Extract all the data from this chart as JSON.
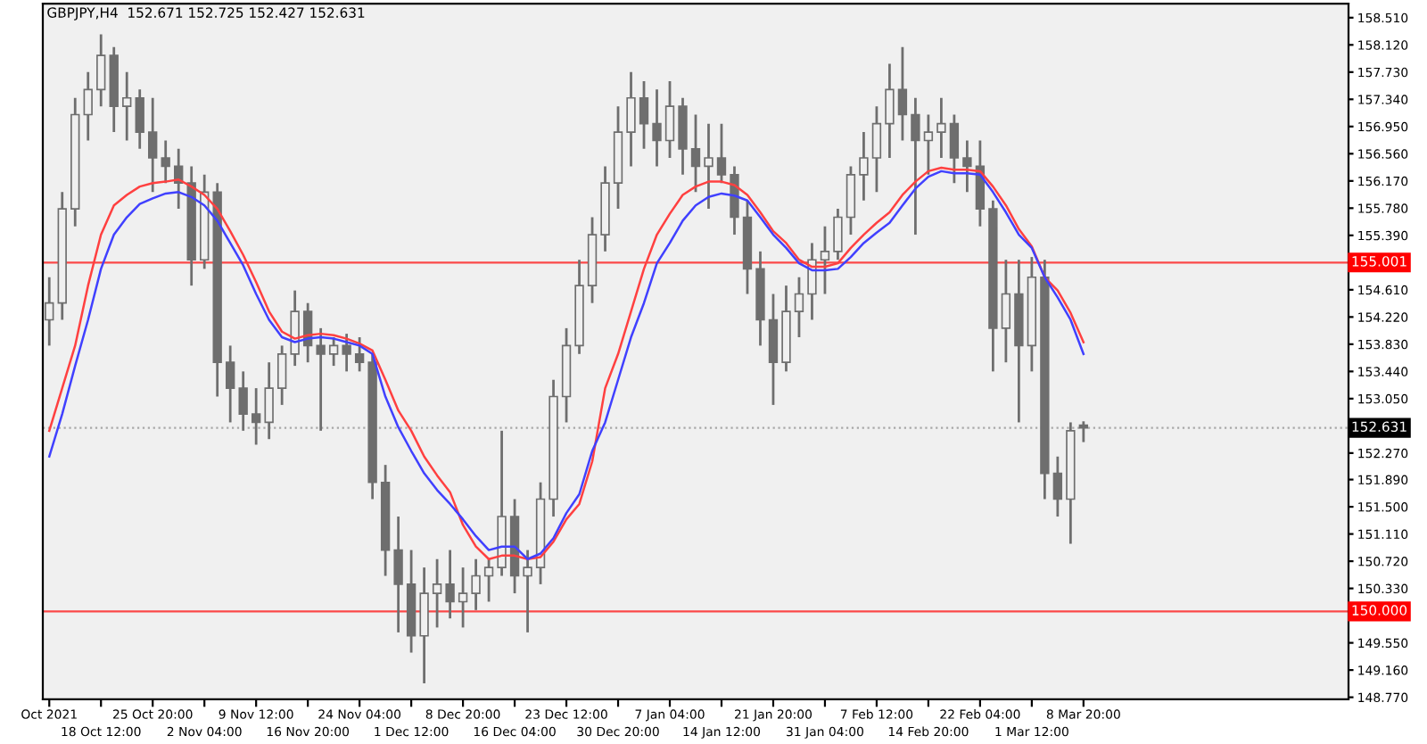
{
  "chart_data": {
    "type": "candlestick",
    "title": "GBPJPY,H4  152.671 152.725 152.427 152.631",
    "categories": [
      "Oct 2021",
      null,
      null,
      null,
      "18 Oct 12:00",
      null,
      null,
      null,
      "25 Oct 20:00",
      null,
      null,
      null,
      "2 Nov 04:00",
      null,
      null,
      null,
      "9 Nov 12:00",
      null,
      null,
      null,
      "16 Nov 20:00",
      null,
      null,
      null,
      "24 Nov 04:00",
      null,
      null,
      null,
      "1 Dec 12:00",
      null,
      null,
      null,
      "8 Dec 20:00",
      null,
      null,
      null,
      "16 Dec 04:00",
      null,
      null,
      null,
      "23 Dec 12:00",
      null,
      null,
      null,
      "30 Dec 20:00",
      null,
      null,
      null,
      "7 Jan 04:00",
      null,
      null,
      null,
      "14 Jan 12:00",
      null,
      null,
      null,
      "21 Jan 20:00",
      null,
      null,
      null,
      "31 Jan 04:00",
      null,
      null,
      null,
      "7 Feb 12:00",
      null,
      null,
      null,
      "14 Feb 20:00",
      null,
      null,
      null,
      "22 Feb 04:00",
      null,
      null,
      null,
      "1 Mar 12:00",
      null,
      null,
      null,
      "8 Mar 20:00",
      null,
      null,
      null,
      null,
      null,
      null,
      null,
      null,
      null,
      null,
      null,
      null,
      null,
      null,
      null,
      null,
      null,
      null,
      null,
      null
    ],
    "ohlc": [
      [
        154.18,
        154.79,
        153.81,
        154.42
      ],
      [
        154.42,
        156.01,
        154.18,
        155.77
      ],
      [
        155.77,
        157.36,
        155.52,
        157.12
      ],
      [
        157.12,
        157.73,
        156.75,
        157.48
      ],
      [
        157.48,
        158.27,
        157.24,
        157.97
      ],
      [
        157.97,
        158.09,
        156.87,
        157.24
      ],
      [
        157.24,
        157.73,
        156.75,
        157.36
      ],
      [
        157.36,
        157.48,
        156.63,
        156.87
      ],
      [
        156.87,
        157.36,
        156.01,
        156.5
      ],
      [
        156.5,
        156.75,
        156.14,
        156.38
      ],
      [
        156.38,
        156.63,
        155.77,
        156.14
      ],
      [
        156.14,
        156.38,
        154.67,
        155.04
      ],
      [
        155.04,
        156.26,
        154.91,
        156.01
      ],
      [
        156.01,
        156.14,
        153.08,
        153.57
      ],
      [
        153.57,
        153.81,
        152.71,
        153.2
      ],
      [
        153.2,
        153.44,
        152.59,
        152.83
      ],
      [
        152.83,
        153.2,
        152.39,
        152.71
      ],
      [
        152.71,
        153.57,
        152.47,
        153.2
      ],
      [
        153.2,
        153.81,
        152.96,
        153.69
      ],
      [
        153.69,
        154.6,
        153.52,
        154.3
      ],
      [
        154.3,
        154.42,
        153.57,
        153.81
      ],
      [
        153.81,
        154.06,
        152.59,
        153.69
      ],
      [
        153.69,
        153.93,
        153.52,
        153.81
      ],
      [
        153.81,
        153.98,
        153.44,
        153.69
      ],
      [
        153.69,
        153.93,
        153.44,
        153.57
      ],
      [
        153.57,
        153.69,
        151.61,
        151.85
      ],
      [
        151.85,
        152.1,
        150.51,
        150.88
      ],
      [
        150.88,
        151.36,
        149.7,
        150.39
      ],
      [
        150.39,
        150.88,
        149.41,
        149.65
      ],
      [
        149.65,
        150.63,
        148.97,
        150.26
      ],
      [
        150.26,
        150.75,
        149.77,
        150.39
      ],
      [
        150.39,
        150.88,
        149.9,
        150.14
      ],
      [
        150.14,
        150.63,
        149.77,
        150.26
      ],
      [
        150.26,
        150.75,
        150.02,
        150.51
      ],
      [
        150.51,
        150.75,
        150.14,
        150.63
      ],
      [
        150.63,
        152.59,
        150.51,
        151.36
      ],
      [
        151.36,
        151.61,
        150.26,
        150.51
      ],
      [
        150.51,
        150.88,
        149.7,
        150.63
      ],
      [
        150.63,
        151.85,
        150.39,
        151.61
      ],
      [
        151.61,
        153.32,
        151.36,
        153.08
      ],
      [
        153.08,
        154.06,
        152.71,
        153.81
      ],
      [
        153.81,
        155.04,
        153.69,
        154.67
      ],
      [
        154.67,
        155.65,
        154.42,
        155.4
      ],
      [
        155.4,
        156.38,
        155.16,
        156.14
      ],
      [
        156.14,
        157.24,
        155.77,
        156.87
      ],
      [
        156.87,
        157.73,
        156.38,
        157.36
      ],
      [
        157.36,
        157.6,
        156.63,
        156.99
      ],
      [
        156.99,
        157.48,
        156.38,
        156.75
      ],
      [
        156.75,
        157.6,
        156.5,
        157.24
      ],
      [
        157.24,
        157.36,
        156.26,
        156.63
      ],
      [
        156.63,
        157.12,
        156.01,
        156.38
      ],
      [
        156.38,
        156.99,
        155.77,
        156.5
      ],
      [
        156.5,
        156.99,
        156.14,
        156.26
      ],
      [
        156.26,
        156.38,
        155.4,
        155.65
      ],
      [
        155.65,
        155.89,
        154.55,
        154.91
      ],
      [
        154.91,
        155.16,
        153.81,
        154.18
      ],
      [
        154.18,
        154.55,
        152.96,
        153.57
      ],
      [
        153.57,
        154.67,
        153.44,
        154.3
      ],
      [
        154.3,
        154.79,
        153.93,
        154.55
      ],
      [
        154.55,
        155.28,
        154.18,
        155.04
      ],
      [
        155.04,
        155.52,
        154.55,
        155.16
      ],
      [
        155.16,
        155.77,
        155.04,
        155.65
      ],
      [
        155.65,
        156.38,
        155.4,
        156.26
      ],
      [
        156.26,
        156.87,
        155.89,
        156.5
      ],
      [
        156.5,
        157.24,
        156.01,
        156.99
      ],
      [
        156.99,
        157.85,
        156.5,
        157.48
      ],
      [
        157.48,
        158.09,
        156.75,
        157.12
      ],
      [
        157.12,
        157.36,
        155.4,
        156.75
      ],
      [
        156.75,
        157.12,
        156.26,
        156.87
      ],
      [
        156.87,
        157.36,
        156.5,
        156.99
      ],
      [
        156.99,
        157.12,
        156.14,
        156.5
      ],
      [
        156.5,
        156.75,
        156.01,
        156.38
      ],
      [
        156.38,
        156.75,
        155.52,
        155.77
      ],
      [
        155.77,
        155.89,
        153.44,
        154.06
      ],
      [
        154.06,
        155.04,
        153.57,
        154.55
      ],
      [
        154.55,
        155.04,
        152.71,
        153.81
      ],
      [
        153.81,
        155.08,
        153.44,
        154.79
      ],
      [
        154.79,
        155.04,
        151.61,
        151.98
      ],
      [
        151.98,
        152.22,
        151.36,
        151.61
      ],
      [
        151.61,
        152.71,
        150.97,
        152.59
      ],
      [
        152.671,
        152.725,
        152.427,
        152.631
      ],
      null,
      null,
      null,
      null,
      null,
      null,
      null,
      null,
      null,
      null,
      null,
      null,
      null,
      null,
      null,
      null,
      null,
      null,
      null,
      null
    ],
    "color": "#6e6e6e",
    "series": [
      {
        "type": "line",
        "color": "#ff4040",
        "values": [
          152.59,
          153.2,
          153.81,
          154.67,
          155.4,
          155.82,
          155.97,
          156.09,
          156.14,
          156.16,
          156.19,
          156.09,
          155.97,
          155.77,
          155.45,
          155.11,
          154.72,
          154.3,
          154.01,
          153.91,
          153.96,
          153.98,
          153.96,
          153.91,
          153.84,
          153.74,
          153.32,
          152.88,
          152.59,
          152.22,
          151.95,
          151.71,
          151.24,
          150.93,
          150.75,
          150.8,
          150.8,
          150.75,
          150.78,
          151.0,
          151.32,
          151.54,
          152.15,
          153.2,
          153.69,
          154.3,
          154.91,
          155.4,
          155.7,
          155.97,
          156.09,
          156.16,
          156.16,
          156.11,
          155.97,
          155.72,
          155.45,
          155.28,
          155.04,
          154.94,
          154.94,
          154.99,
          155.21,
          155.4,
          155.57,
          155.72,
          155.97,
          156.16,
          156.31,
          156.36,
          156.33,
          156.33,
          156.31,
          156.09,
          155.82,
          155.48,
          155.23,
          154.79,
          154.6,
          154.28,
          153.86,
          null,
          null,
          null,
          null,
          null,
          null,
          null,
          null,
          null,
          null,
          null,
          null,
          null,
          null,
          null,
          null,
          null,
          null,
          null,
          null
        ]
      },
      {
        "type": "line",
        "color": "#4040ff",
        "values": [
          152.22,
          152.83,
          153.52,
          154.18,
          154.91,
          155.4,
          155.65,
          155.84,
          155.92,
          155.99,
          156.01,
          155.94,
          155.82,
          155.6,
          155.28,
          154.96,
          154.55,
          154.18,
          153.93,
          153.86,
          153.91,
          153.93,
          153.91,
          153.86,
          153.81,
          153.69,
          153.08,
          152.64,
          152.3,
          151.98,
          151.74,
          151.54,
          151.32,
          151.08,
          150.88,
          150.93,
          150.93,
          150.75,
          150.83,
          151.05,
          151.41,
          151.68,
          152.3,
          152.71,
          153.32,
          153.93,
          154.42,
          154.99,
          155.28,
          155.6,
          155.82,
          155.94,
          155.99,
          155.96,
          155.89,
          155.65,
          155.4,
          155.21,
          154.99,
          154.89,
          154.89,
          154.91,
          155.08,
          155.28,
          155.43,
          155.57,
          155.82,
          156.06,
          156.23,
          156.31,
          156.28,
          156.28,
          156.26,
          156.01,
          155.72,
          155.4,
          155.21,
          154.79,
          154.5,
          154.18,
          153.69,
          null,
          null,
          null,
          null,
          null,
          null,
          null,
          null,
          null,
          null,
          null,
          null,
          null,
          null,
          null,
          null,
          null,
          null,
          null,
          null
        ]
      }
    ],
    "ylim": [
      148.74,
      158.71
    ],
    "yticks": [
      {
        "value": 158.51,
        "label": "158.510"
      },
      {
        "value": 158.12,
        "label": "158.120"
      },
      {
        "value": 157.73,
        "label": "157.730"
      },
      {
        "value": 157.34,
        "label": "157.340"
      },
      {
        "value": 156.95,
        "label": "156.950"
      },
      {
        "value": 156.56,
        "label": "156.560"
      },
      {
        "value": 156.17,
        "label": "156.170"
      },
      {
        "value": 155.78,
        "label": "155.780"
      },
      {
        "value": 155.39,
        "label": "155.390"
      },
      {
        "value": 154.61,
        "label": "154.610"
      },
      {
        "value": 154.22,
        "label": "154.220"
      },
      {
        "value": 153.83,
        "label": "153.830"
      },
      {
        "value": 153.44,
        "label": "153.440"
      },
      {
        "value": 153.05,
        "label": "153.050"
      },
      {
        "value": 152.27,
        "label": "152.270"
      },
      {
        "value": 151.89,
        "label": "151.890"
      },
      {
        "value": 151.5,
        "label": "151.500"
      },
      {
        "value": 151.11,
        "label": "151.110"
      },
      {
        "value": 150.72,
        "label": "150.720"
      },
      {
        "value": 150.33,
        "label": "150.330"
      },
      {
        "value": 149.55,
        "label": "149.550"
      },
      {
        "value": 149.16,
        "label": "149.160"
      },
      {
        "value": 148.77,
        "label": "148.770"
      }
    ],
    "ref_lines": [
      {
        "axis": "y",
        "value": 155.001,
        "label": "155.001",
        "color": "#ff0000"
      },
      {
        "axis": "y",
        "value": 150.0,
        "label": "150.000",
        "color": "#ff0000"
      },
      {
        "axis": "y",
        "value": 152.631,
        "label": "152.631",
        "color": "#000000",
        "line_style": "dotted"
      }
    ],
    "grid": false,
    "legend": false
  }
}
